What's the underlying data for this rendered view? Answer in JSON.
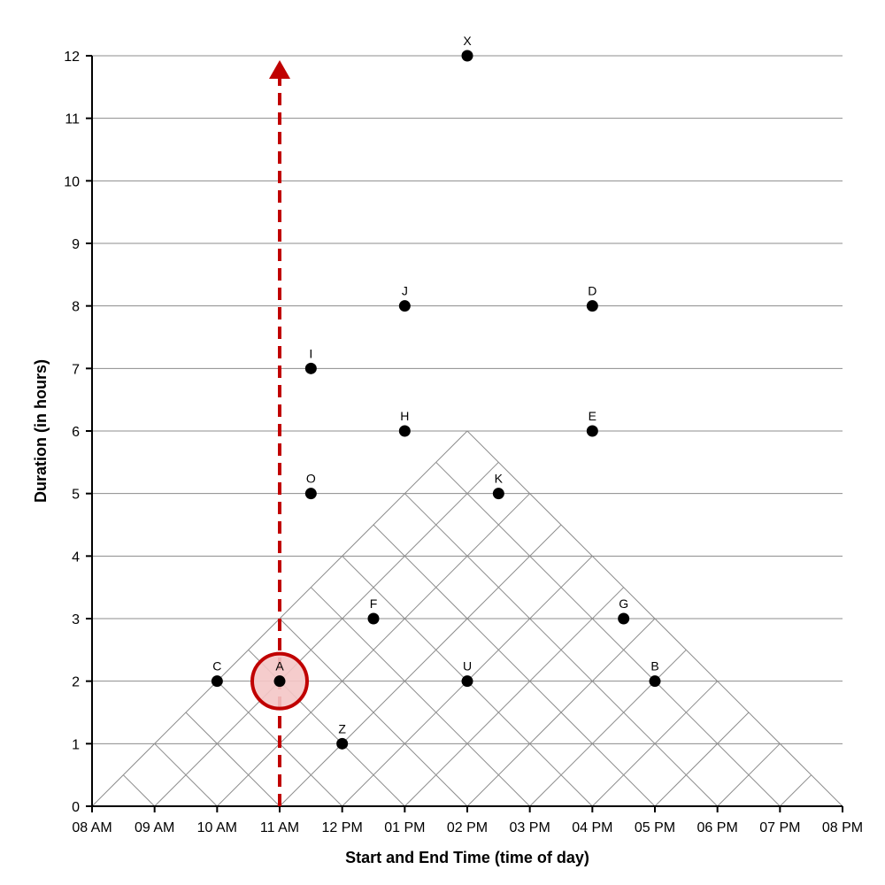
{
  "chart_data": {
    "type": "scatter",
    "title": "",
    "xlabel": "Start and End Time (time of day)",
    "ylabel": "Duration (in hours)",
    "xlim": [
      8,
      20
    ],
    "ylim": [
      0,
      12
    ],
    "grid": "triangular",
    "x_tick_labels": [
      "08 AM",
      "09 AM",
      "10 AM",
      "11 AM",
      "12 PM",
      "01 PM",
      "02 PM",
      "03 PM",
      "04 PM",
      "05 PM",
      "06 PM",
      "07 PM",
      "08 PM"
    ],
    "y_tick_labels": [
      "0",
      "1",
      "2",
      "3",
      "4",
      "5",
      "6",
      "7",
      "8",
      "9",
      "10",
      "11",
      "12"
    ],
    "points": [
      {
        "label": "X",
        "x": 14,
        "y": 12
      },
      {
        "label": "J",
        "x": 13,
        "y": 8
      },
      {
        "label": "D",
        "x": 16,
        "y": 8
      },
      {
        "label": "I",
        "x": 11.5,
        "y": 7
      },
      {
        "label": "H",
        "x": 13,
        "y": 6
      },
      {
        "label": "E",
        "x": 16,
        "y": 6
      },
      {
        "label": "O",
        "x": 11.5,
        "y": 5
      },
      {
        "label": "K",
        "x": 14.5,
        "y": 5
      },
      {
        "label": "F",
        "x": 12.5,
        "y": 3
      },
      {
        "label": "G",
        "x": 16.5,
        "y": 3
      },
      {
        "label": "C",
        "x": 10,
        "y": 2
      },
      {
        "label": "A",
        "x": 11,
        "y": 2
      },
      {
        "label": "U",
        "x": 14,
        "y": 2
      },
      {
        "label": "B",
        "x": 17,
        "y": 2
      },
      {
        "label": "Z",
        "x": 12,
        "y": 1
      }
    ],
    "highlight": {
      "label": "A",
      "x": 11,
      "y": 2
    },
    "annotation": {
      "type": "dashed-arrow",
      "x": 11,
      "from_y": 0,
      "to_y": 12,
      "color": "#c00000"
    },
    "colors": {
      "grid": "#8c8c8c",
      "point": "#000000",
      "highlight_fill": "#f4c7c7",
      "highlight_stroke": "#c00000"
    }
  }
}
